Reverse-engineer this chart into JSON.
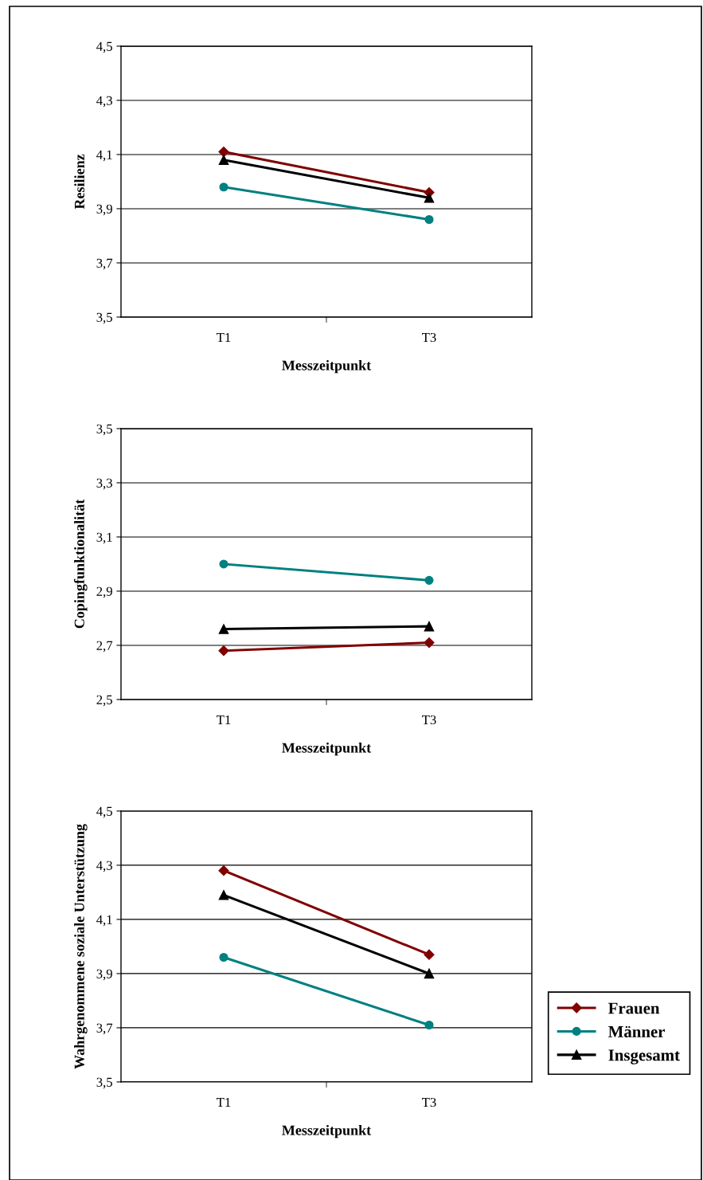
{
  "chart_data": [
    {
      "type": "line",
      "ylabel": "Resilienz",
      "xlabel": "Messzeitpunkt",
      "categories": [
        "T1",
        "T3"
      ],
      "ylim": [
        3.5,
        4.5
      ],
      "yticks": [
        {
          "value": 3.5,
          "label": "3,5"
        },
        {
          "value": 3.7,
          "label": "3,7"
        },
        {
          "value": 3.9,
          "label": "3,9"
        },
        {
          "value": 4.1,
          "label": "4,1"
        },
        {
          "value": 4.3,
          "label": "4,3"
        },
        {
          "value": 4.5,
          "label": "4,5"
        }
      ],
      "grid": "y",
      "legend": false,
      "series": [
        {
          "color": "#800000",
          "marker": "diamond",
          "values": [
            4.11,
            3.96
          ]
        },
        {
          "color": "#008080",
          "marker": "circle",
          "values": [
            3.98,
            3.86
          ]
        },
        {
          "color": "#000000",
          "marker": "triangle",
          "values": [
            4.08,
            3.94
          ]
        }
      ]
    },
    {
      "type": "line",
      "ylabel": "Copingfunktionalität",
      "xlabel": "Messzeitpunkt",
      "categories": [
        "T1",
        "T3"
      ],
      "ylim": [
        2.5,
        3.5
      ],
      "yticks": [
        {
          "value": 2.5,
          "label": "2,5"
        },
        {
          "value": 2.7,
          "label": "2,7"
        },
        {
          "value": 2.9,
          "label": "2,9"
        },
        {
          "value": 3.1,
          "label": "3,1"
        },
        {
          "value": 3.3,
          "label": "3,3"
        },
        {
          "value": 3.5,
          "label": "3,5"
        }
      ],
      "grid": "y",
      "legend": false,
      "series": [
        {
          "color": "#800000",
          "marker": "diamond",
          "values": [
            2.68,
            2.71
          ]
        },
        {
          "color": "#008080",
          "marker": "circle",
          "values": [
            3.0,
            2.94
          ]
        },
        {
          "color": "#000000",
          "marker": "triangle",
          "values": [
            2.76,
            2.77
          ]
        }
      ]
    },
    {
      "type": "line",
      "ylabel": "Wahrgenommene soziale Unterstützung",
      "xlabel": "Messzeitpunkt",
      "categories": [
        "T1",
        "T3"
      ],
      "ylim": [
        3.5,
        4.5
      ],
      "yticks": [
        {
          "value": 3.5,
          "label": "3,5"
        },
        {
          "value": 3.7,
          "label": "3,7"
        },
        {
          "value": 3.9,
          "label": "3,9"
        },
        {
          "value": 4.1,
          "label": "4,1"
        },
        {
          "value": 4.3,
          "label": "4,3"
        },
        {
          "value": 4.5,
          "label": "4,5"
        }
      ],
      "grid": "y",
      "legend": "right",
      "series": [
        {
          "name": "Frauen",
          "color": "#800000",
          "marker": "diamond",
          "values": [
            4.28,
            3.97
          ]
        },
        {
          "name": "Männer",
          "color": "#008080",
          "marker": "circle",
          "values": [
            3.96,
            3.71
          ]
        },
        {
          "name": "Insgesamt",
          "color": "#000000",
          "marker": "triangle",
          "values": [
            4.19,
            3.9
          ]
        }
      ]
    }
  ]
}
